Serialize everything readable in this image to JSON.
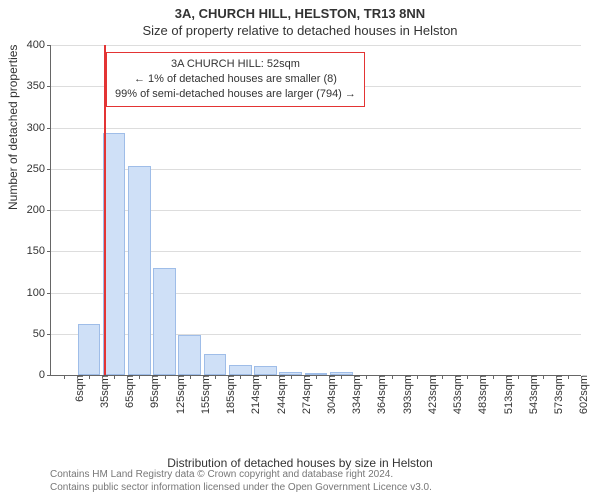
{
  "title_line1": "3A, CHURCH HILL, HELSTON, TR13 8NN",
  "title_line2": "Size of property relative to detached houses in Helston",
  "ylabel": "Number of detached properties",
  "xlabel": "Distribution of detached houses by size in Helston",
  "footer_line1": "Contains HM Land Registry data © Crown copyright and database right 2024.",
  "footer_line2": "Contains public sector information licensed under the Open Government Licence v3.0.",
  "chart": {
    "type": "histogram",
    "ylim": [
      0,
      400
    ],
    "ytick_step": 50,
    "yticks": [
      0,
      50,
      100,
      150,
      200,
      250,
      300,
      350,
      400
    ],
    "grid_color": "#dddddd",
    "axis_color": "#666666",
    "background_color": "#ffffff",
    "bar_fill": "#cfe0f7",
    "bar_stroke": "#9fbde8",
    "tick_fontsize": 11,
    "label_fontsize": 12,
    "title_fontsize": 13,
    "reference_line": {
      "x_index": 1.6,
      "color": "#e33434"
    },
    "annotation": {
      "line1": "3A CHURCH HILL: 52sqm",
      "line2": "← 1% of detached houses are smaller (8)",
      "line3": "99% of semi-detached houses are larger (794) →",
      "border_color": "#e33434",
      "background": "#ffffff",
      "fontsize": 11
    },
    "categories": [
      "6sqm",
      "35sqm",
      "65sqm",
      "95sqm",
      "125sqm",
      "155sqm",
      "185sqm",
      "214sqm",
      "244sqm",
      "274sqm",
      "304sqm",
      "334sqm",
      "364sqm",
      "393sqm",
      "423sqm",
      "453sqm",
      "483sqm",
      "513sqm",
      "543sqm",
      "573sqm",
      "602sqm"
    ],
    "values": [
      0,
      62,
      293,
      253,
      130,
      48,
      25,
      12,
      11,
      4,
      3,
      4,
      0,
      0,
      0,
      0,
      0,
      0,
      0,
      0,
      0
    ]
  }
}
